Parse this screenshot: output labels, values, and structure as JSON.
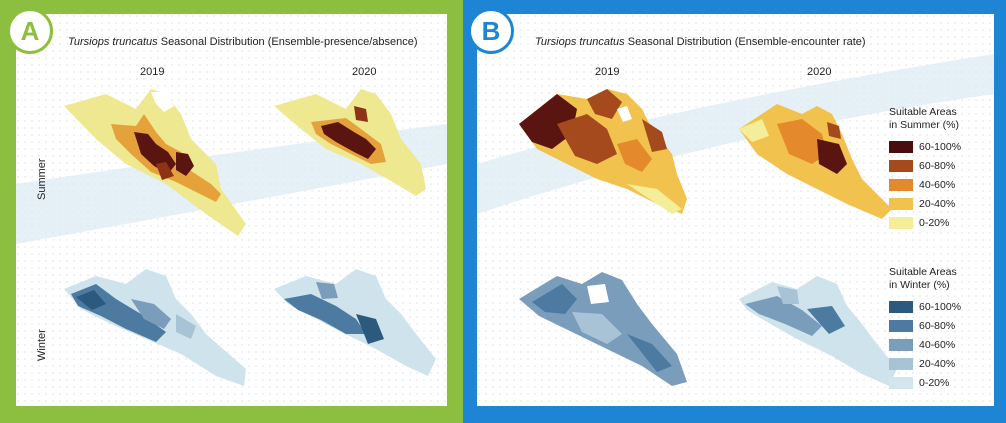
{
  "panel_a": {
    "badge": "A",
    "title_species": "Tursiops truncatus",
    "title_rest": " Seasonal Distribution (Ensemble-presence/absence)",
    "years": [
      "2019",
      "2020"
    ],
    "rows": [
      "Summer",
      "Winter"
    ]
  },
  "panel_b": {
    "badge": "B",
    "title_species": "Tursiops truncatus",
    "title_rest": " Seasonal Distribution (Ensemble-encounter rate)",
    "years": [
      "2019",
      "2020"
    ],
    "legend_summer": {
      "title_line1": "Suitable Areas",
      "title_line2": "in Summer (%)",
      "items": [
        {
          "label": "60-100%",
          "color": "#4a0d0d"
        },
        {
          "label": "60-80%",
          "color": "#a44a1c"
        },
        {
          "label": "40-60%",
          "color": "#e48a2c"
        },
        {
          "label": "20-40%",
          "color": "#f2c24e"
        },
        {
          "label": "0-20%",
          "color": "#f4ee9a"
        }
      ]
    },
    "legend_winter": {
      "title_line1": "Suitable Areas",
      "title_line2": "in Winter (%)",
      "items": [
        {
          "label": "60-100%",
          "color": "#2b5a7e"
        },
        {
          "label": "60-80%",
          "color": "#4c7aa0"
        },
        {
          "label": "40-60%",
          "color": "#7a9dbb"
        },
        {
          "label": "20-40%",
          "color": "#a9c3d6"
        },
        {
          "label": "0-20%",
          "color": "#d3e6ee"
        }
      ]
    }
  },
  "colors": {
    "panel_a_frame": "#8cbf3f",
    "panel_b_frame": "#1d85d4",
    "summer_base": "#f1ee9c",
    "winter_base": "#cfe3ec"
  }
}
